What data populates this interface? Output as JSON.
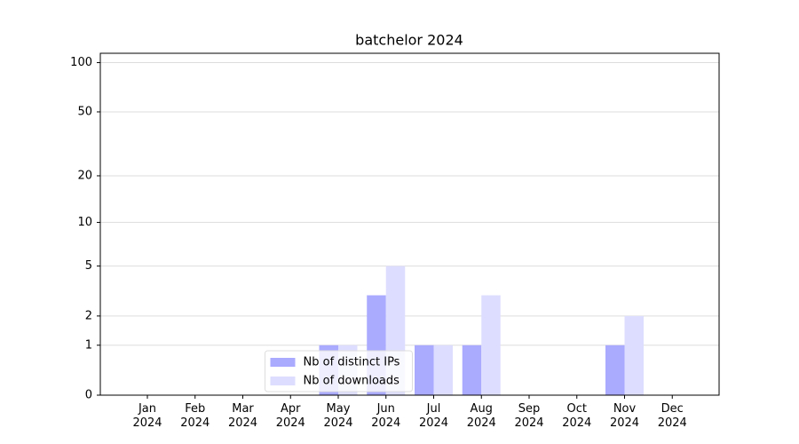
{
  "chart_data": {
    "type": "bar",
    "title": "batchelor 2024",
    "categories": [
      "Jan 2024",
      "Feb 2024",
      "Mar 2024",
      "Apr 2024",
      "May 2024",
      "Jun 2024",
      "Jul 2024",
      "Aug 2024",
      "Sep 2024",
      "Oct 2024",
      "Nov 2024",
      "Dec 2024"
    ],
    "series": [
      {
        "name": "Nb of distinct IPs",
        "color": "#aaaaff",
        "values": [
          0,
          0,
          0,
          0,
          1,
          3,
          1,
          1,
          0,
          0,
          1,
          0
        ]
      },
      {
        "name": "Nb of downloads",
        "color": "#ddddff",
        "values": [
          0,
          0,
          0,
          0,
          1,
          5,
          1,
          3,
          0,
          0,
          2,
          0
        ]
      }
    ],
    "y_scale": "log1p",
    "ylim": [
      0,
      114
    ],
    "yticks": [
      0,
      1,
      2,
      5,
      10,
      20,
      50,
      100
    ],
    "grid": true,
    "legend": "lower center"
  }
}
